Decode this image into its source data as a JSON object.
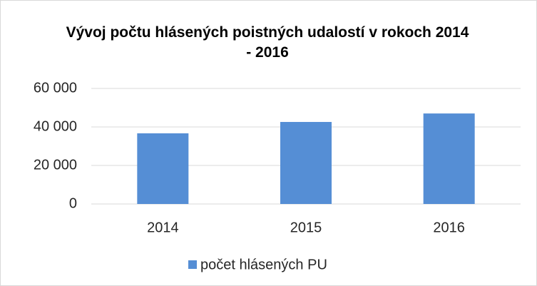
{
  "chart_data": {
    "type": "bar",
    "title": "Vývoj počtu hlásených poistných udalostí v rokoch 2014 - 2016",
    "categories": [
      "2014",
      "2015",
      "2016"
    ],
    "series": [
      {
        "name": "počet hlásených PU",
        "color": "#558ed5",
        "values": [
          36700,
          42600,
          47000
        ]
      }
    ],
    "ylim": [
      0,
      60000
    ],
    "yticks": [
      0,
      {
        "value": 20000,
        "label": "20 000"
      },
      {
        "value": 40000,
        "label": "40 000"
      },
      {
        "value": 60000,
        "label": "60 000"
      }
    ],
    "grid": true,
    "legend": "bottom"
  }
}
